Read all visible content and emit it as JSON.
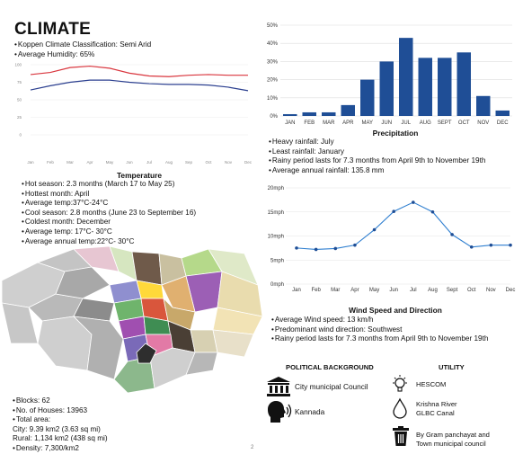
{
  "title": "CLIMATE",
  "climate": {
    "items": [
      "Koppen Climate Classification: Semi Arid",
      "Average Humidity: 65%"
    ]
  },
  "temperature": {
    "title": "Temperature",
    "items": [
      "Hot season: 2.3 months (March 17 to May 25)",
      "Hottest month: April",
      "Average temp:37°C-24°C",
      "Cool season: 2.8 months (June 23 to September 16)",
      "Coldest month: December",
      "Average temp: 17°C- 30°C",
      "Average annual temp:22°C- 30°C"
    ]
  },
  "precipitation": {
    "title": "Precipitation",
    "items": [
      "Heavy rainfall: July",
      "Least rainfall: January",
      "Rainy period lasts for 7.3 months from April 9th to November 19th",
      "Average annual rainfall: 135.8 mm"
    ]
  },
  "wind": {
    "title": "Wind Speed and Direction",
    "items": [
      "Average Wind speed: 13 km/h",
      "Predominant wind direction: Southwest",
      "Rainy period lasts for 7.3 months from April 9th to November 19th"
    ]
  },
  "city": {
    "items": [
      "Blocks: 62",
      "No. of Houses: 13963",
      "Total area:"
    ],
    "area_lines": [
      "City: 9.39 km2 (3.63 sq mi)",
      "Rural: 1,134 km2 (438 sq mi)"
    ],
    "density": "Density: 7,300/km2"
  },
  "political": {
    "title": "POLITICAL BACKGROUND",
    "items": [
      {
        "icon": "columns-building-icon",
        "label": "City municipal Council"
      },
      {
        "icon": "speaking-head-icon",
        "label": "Kannada"
      }
    ]
  },
  "utility": {
    "title": "UTILITY",
    "items": [
      {
        "icon": "lightbulb-icon",
        "label": "HESCOM"
      },
      {
        "icon": "water-drop-icon",
        "label": "Krishna River\nGLBC Canal"
      },
      {
        "icon": "trash-bin-icon",
        "label": "By Gram panchayat and\nTown municipal council"
      }
    ]
  },
  "page_number": "2",
  "chart_data": [
    {
      "type": "line",
      "id": "temperature",
      "x": [
        "Jan",
        "Feb",
        "Mar",
        "Apr",
        "May",
        "Jun",
        "Jul",
        "Aug",
        "Sep",
        "Oct",
        "Nov",
        "Dec"
      ],
      "series": [
        {
          "color": "#d9363e",
          "values": [
            86,
            89,
            96,
            98,
            95,
            88,
            84,
            83,
            85,
            86,
            85,
            85
          ]
        },
        {
          "color": "#2b3f8f",
          "values": [
            64,
            70,
            75,
            78,
            78,
            75,
            73,
            72,
            72,
            71,
            68,
            63
          ]
        }
      ],
      "ylim": [
        0,
        100
      ],
      "yticks": [
        0,
        25,
        50,
        75,
        100
      ]
    },
    {
      "type": "bar",
      "id": "precipitation",
      "categories": [
        "JAN",
        "FEB",
        "MAR",
        "APR",
        "MAY",
        "JUN",
        "JUL",
        "AUG",
        "SEPT",
        "OCT",
        "NOV",
        "DEC"
      ],
      "values": [
        1,
        2,
        2,
        6,
        20,
        30,
        43,
        32,
        32,
        35,
        11,
        3
      ],
      "color": "#1f4e96",
      "ylim": [
        0,
        50
      ],
      "yticks": [
        "0%",
        "10%",
        "20%",
        "30%",
        "40%",
        "50%"
      ]
    },
    {
      "type": "line",
      "id": "wind",
      "x": [
        "Jan",
        "Feb",
        "Mar",
        "Apr",
        "May",
        "Jun",
        "Jul",
        "Aug",
        "Sept",
        "Oct",
        "Nov",
        "Dec"
      ],
      "series": [
        {
          "color": "#2f7fd0",
          "values": [
            7.5,
            7.2,
            7.4,
            8.1,
            11.3,
            15.1,
            17,
            15,
            10.3,
            7.7,
            8.1,
            8.1
          ]
        }
      ],
      "ylim": [
        0,
        20
      ],
      "yticks": [
        "0mph",
        "5mph",
        "10mph",
        "15mph",
        "20mph"
      ]
    }
  ]
}
